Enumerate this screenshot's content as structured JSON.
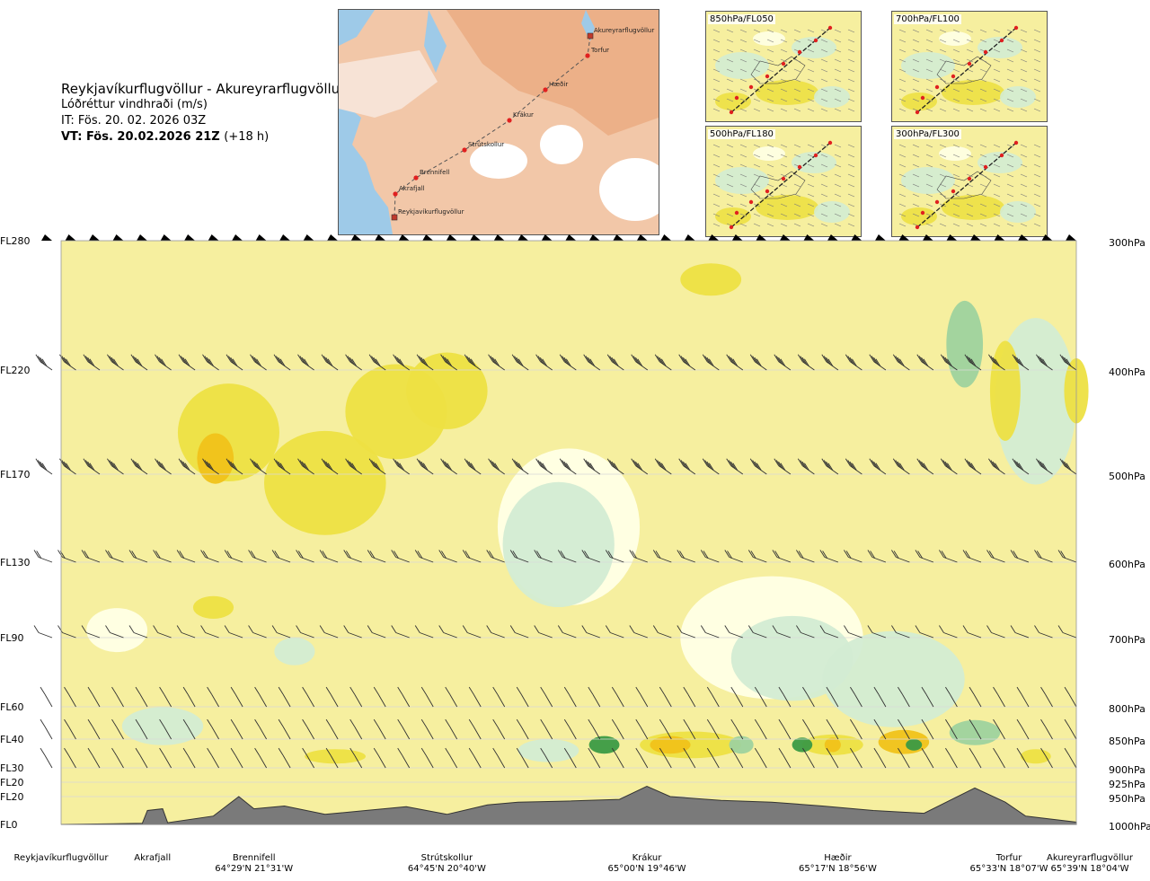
{
  "header": {
    "route": "Reykjavíkurflugvöllur - Akureyrarflugvöllur",
    "variable": "Lóðréttur vindhraði (m/s)",
    "issue_time": "IT: Fös. 20. 02. 2026 03Z",
    "valid_time": "VT: Fös. 20.02.2026 21Z",
    "lead_time": "(+18 h)"
  },
  "route_map": {
    "points": [
      {
        "name": "Akureyrarflugvöllur",
        "type": "airport"
      },
      {
        "name": "Torfur",
        "type": "waypoint"
      },
      {
        "name": "Hæðir",
        "type": "waypoint"
      },
      {
        "name": "Krákur",
        "type": "waypoint"
      },
      {
        "name": "Strútskollur",
        "type": "waypoint"
      },
      {
        "name": "Brennifell",
        "type": "waypoint"
      },
      {
        "name": "Akrafjall",
        "type": "waypoint"
      },
      {
        "name": "Reykjavíkurflugvöllur",
        "type": "airport"
      }
    ]
  },
  "level_panels": [
    {
      "label": "850hPa/FL050"
    },
    {
      "label": "700hPa/FL100"
    },
    {
      "label": "500hPa/FL180"
    },
    {
      "label": "300hPa/FL300"
    }
  ],
  "levels": [
    {
      "fl": "FL280",
      "hpa": "300hPa",
      "p": 300
    },
    {
      "fl": "FL220",
      "hpa": "400hPa",
      "p": 400
    },
    {
      "fl": "FL170",
      "hpa": "500hPa",
      "p": 500
    },
    {
      "fl": "FL130",
      "hpa": "600hPa",
      "p": 600
    },
    {
      "fl": "FL90",
      "hpa": "700hPa",
      "p": 700
    },
    {
      "fl": "FL60",
      "hpa": "800hPa",
      "p": 800
    },
    {
      "fl": "FL40",
      "hpa": "850hPa",
      "p": 850
    },
    {
      "fl": "FL30",
      "hpa": "900hPa",
      "p": 900
    },
    {
      "fl": "FL20",
      "hpa": "925hPa",
      "p": 925
    },
    {
      "fl": "FL20",
      "hpa": "950hPa",
      "p": 950
    },
    {
      "fl": "FL0",
      "hpa": "1000hPa",
      "p": 1000
    }
  ],
  "waypoints": [
    {
      "name": "Reykjavíkurflugvöllur",
      "coord": "",
      "frac": 0.0
    },
    {
      "name": "Akrafjall",
      "coord": "",
      "frac": 0.09
    },
    {
      "name": "Brennifell",
      "coord": "64°29'N 21°31'W",
      "frac": 0.19
    },
    {
      "name": "Strútskollur",
      "coord": "64°45'N 20°40'W",
      "frac": 0.38
    },
    {
      "name": "Krákur",
      "coord": "65°00'N 19°46'W",
      "frac": 0.577
    },
    {
      "name": "Hæðir",
      "coord": "65°17'N 18°56'W",
      "frac": 0.765
    },
    {
      "name": "Torfur",
      "coord": "65°33'N 18°07'W",
      "frac": 0.93
    },
    {
      "name": "Akureyrarflugvöllur",
      "coord": "65°39'N 18°04'W",
      "frac": 1.0
    }
  ],
  "chart_data": {
    "type": "heatmap",
    "title": "Lóðréttur vindhraði (m/s)",
    "x_axis": "route Reykjavíkurflugvöllur → Akureyrarflugvöllur",
    "y_axis_left": [
      "FL280",
      "FL220",
      "FL170",
      "FL130",
      "FL90",
      "FL60",
      "FL40",
      "FL30",
      "FL20",
      "FL20",
      "FL0"
    ],
    "y_axis_right": [
      "300hPa",
      "400hPa",
      "500hPa",
      "600hPa",
      "700hPa",
      "800hPa",
      "850hPa",
      "900hPa",
      "925hPa",
      "950hPa",
      "1000hPa"
    ],
    "yrange_hpa": [
      300,
      1000
    ],
    "colors": {
      "background_weak_up": "#f6ef9f",
      "up_moderate": "#ede043",
      "up_strong": "#f0c21a",
      "near_zero": "#ffffe6",
      "down_weak": "#d3ecd3",
      "down_moderate": "#9ed29e",
      "down_strong": "#3b9a44",
      "terrain": "#7a7a7a",
      "barb": "#333333"
    },
    "terrain_elevation_hpa_by_route_fraction": [
      [
        0.0,
        1000
      ],
      [
        0.08,
        998
      ],
      [
        0.085,
        975
      ],
      [
        0.1,
        972
      ],
      [
        0.105,
        997
      ],
      [
        0.15,
        985
      ],
      [
        0.175,
        950
      ],
      [
        0.19,
        972
      ],
      [
        0.22,
        967
      ],
      [
        0.26,
        982
      ],
      [
        0.3,
        975
      ],
      [
        0.34,
        968
      ],
      [
        0.38,
        982
      ],
      [
        0.42,
        965
      ],
      [
        0.45,
        960
      ],
      [
        0.5,
        958
      ],
      [
        0.55,
        955
      ],
      [
        0.577,
        932
      ],
      [
        0.6,
        950
      ],
      [
        0.65,
        957
      ],
      [
        0.7,
        960
      ],
      [
        0.75,
        967
      ],
      [
        0.8,
        975
      ],
      [
        0.85,
        980
      ],
      [
        0.9,
        935
      ],
      [
        0.93,
        960
      ],
      [
        0.95,
        985
      ],
      [
        1.0,
        996
      ]
    ],
    "wind_barb_levels_hpa": [
      300,
      400,
      500,
      600,
      700,
      800,
      850,
      900
    ]
  }
}
